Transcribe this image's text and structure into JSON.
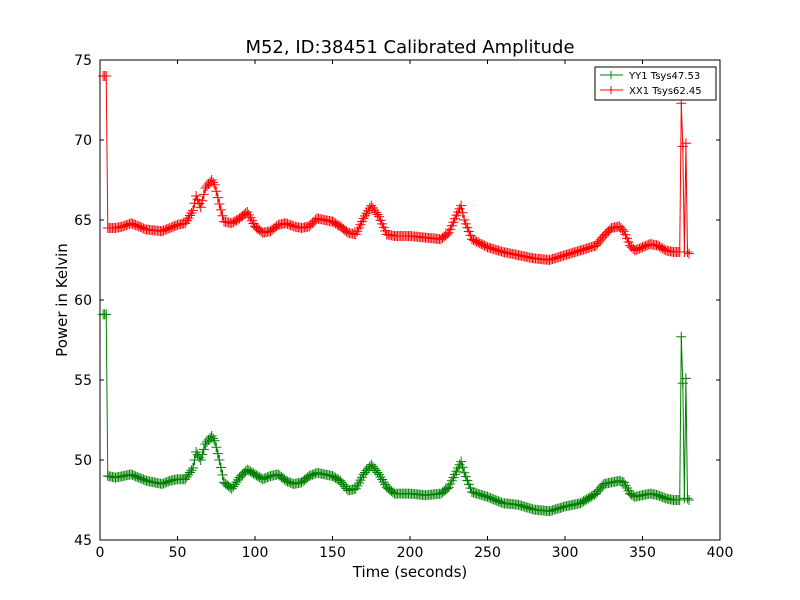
{
  "chart_data": {
    "type": "line",
    "title": "M52, ID:38451 Calibrated Amplitude",
    "xlabel": "Time (seconds)",
    "ylabel": "Power in Kelvin",
    "xlim": [
      0,
      400
    ],
    "ylim": [
      45,
      75
    ],
    "xticks": [
      "0",
      "50",
      "100",
      "150",
      "200",
      "250",
      "300",
      "350",
      "400"
    ],
    "yticks": [
      "45",
      "50",
      "55",
      "60",
      "65",
      "70",
      "75"
    ],
    "grid": false,
    "legend_position": "top-right",
    "marker": "+",
    "series": [
      {
        "name": "YY1 Tsys47.53",
        "color": "#008000",
        "x": [
          2,
          4,
          5,
          10,
          15,
          20,
          25,
          30,
          40,
          45,
          50,
          55,
          60,
          62,
          65,
          68,
          72,
          74,
          77,
          80,
          85,
          90,
          95,
          100,
          105,
          110,
          115,
          120,
          125,
          130,
          135,
          140,
          145,
          150,
          155,
          160,
          165,
          170,
          175,
          180,
          185,
          190,
          200,
          210,
          220,
          225,
          230,
          233,
          235,
          240,
          250,
          260,
          270,
          280,
          290,
          300,
          310,
          320,
          325,
          330,
          335,
          338,
          342,
          345,
          350,
          355,
          360,
          365,
          370,
          374,
          375,
          376,
          377,
          378,
          379,
          380
        ],
        "y": [
          59.1,
          59.1,
          49.0,
          48.9,
          49.0,
          49.1,
          48.9,
          48.7,
          48.5,
          48.7,
          48.8,
          48.8,
          49.5,
          50.5,
          50.0,
          51.0,
          51.5,
          51.2,
          50.0,
          48.6,
          48.2,
          48.9,
          49.4,
          49.1,
          48.8,
          49.0,
          49.1,
          48.7,
          48.5,
          48.6,
          49.0,
          49.2,
          49.1,
          49.0,
          48.7,
          48.1,
          48.2,
          49.1,
          49.7,
          49.1,
          48.3,
          47.9,
          47.9,
          47.8,
          47.9,
          48.3,
          49.3,
          49.9,
          49.2,
          48.0,
          47.7,
          47.3,
          47.2,
          46.9,
          46.8,
          47.1,
          47.3,
          47.9,
          48.5,
          48.6,
          48.7,
          48.6,
          47.9,
          47.7,
          47.8,
          47.9,
          47.8,
          47.6,
          47.5,
          47.5,
          57.7,
          54.8,
          47.6,
          55.1,
          47.6,
          47.5
        ]
      },
      {
        "name": "XX1 Tsys62.45",
        "color": "#ff0000",
        "x": [
          2,
          4,
          5,
          10,
          15,
          20,
          25,
          30,
          40,
          45,
          50,
          55,
          60,
          62,
          65,
          68,
          72,
          74,
          77,
          80,
          85,
          90,
          95,
          100,
          105,
          110,
          115,
          120,
          125,
          130,
          135,
          140,
          145,
          150,
          155,
          160,
          165,
          170,
          175,
          180,
          185,
          190,
          200,
          210,
          220,
          225,
          230,
          233,
          235,
          240,
          250,
          260,
          270,
          280,
          290,
          300,
          310,
          320,
          325,
          330,
          335,
          338,
          342,
          345,
          350,
          355,
          360,
          365,
          370,
          374,
          375,
          376,
          377,
          378,
          379,
          380
        ],
        "y": [
          74.0,
          74.0,
          64.5,
          64.5,
          64.6,
          64.8,
          64.6,
          64.4,
          64.3,
          64.5,
          64.7,
          64.8,
          65.6,
          66.5,
          65.8,
          67.0,
          67.5,
          67.2,
          66.0,
          64.9,
          64.8,
          65.1,
          65.5,
          64.6,
          64.2,
          64.3,
          64.7,
          64.8,
          64.6,
          64.5,
          64.6,
          65.1,
          65.0,
          64.9,
          64.6,
          64.2,
          64.1,
          65.1,
          65.9,
          65.2,
          64.1,
          64.0,
          64.0,
          63.9,
          63.8,
          64.2,
          65.3,
          65.9,
          65.0,
          63.8,
          63.3,
          63.0,
          62.8,
          62.6,
          62.5,
          62.8,
          63.1,
          63.4,
          64.0,
          64.5,
          64.6,
          64.3,
          63.4,
          63.1,
          63.3,
          63.5,
          63.4,
          63.1,
          63.0,
          63.0,
          72.3,
          69.6,
          63.0,
          69.8,
          63.0,
          62.9
        ]
      }
    ]
  }
}
